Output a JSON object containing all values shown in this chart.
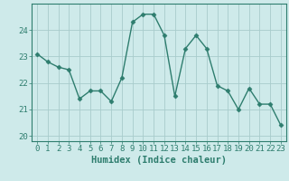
{
  "x": [
    0,
    1,
    2,
    3,
    4,
    5,
    6,
    7,
    8,
    9,
    10,
    11,
    12,
    13,
    14,
    15,
    16,
    17,
    18,
    19,
    20,
    21,
    22,
    23
  ],
  "y": [
    23.1,
    22.8,
    22.6,
    22.5,
    21.4,
    21.7,
    21.7,
    21.3,
    22.2,
    24.3,
    24.6,
    24.6,
    23.8,
    21.5,
    23.3,
    23.8,
    23.3,
    21.9,
    21.7,
    21.0,
    21.8,
    21.2,
    21.2,
    20.4
  ],
  "line_color": "#2e7d6e",
  "marker": "D",
  "marker_size": 2.5,
  "bg_color": "#ceeaea",
  "grid_color": "#a8cccc",
  "xlabel": "Humidex (Indice chaleur)",
  "ylim": [
    19.8,
    25.0
  ],
  "xlim": [
    -0.5,
    23.5
  ],
  "yticks": [
    20,
    21,
    22,
    23,
    24
  ],
  "xticks": [
    0,
    1,
    2,
    3,
    4,
    5,
    6,
    7,
    8,
    9,
    10,
    11,
    12,
    13,
    14,
    15,
    16,
    17,
    18,
    19,
    20,
    21,
    22,
    23
  ],
  "tick_fontsize": 6.5,
  "xlabel_fontsize": 7.5,
  "spine_color": "#2e7d6e",
  "line_width": 1.0
}
